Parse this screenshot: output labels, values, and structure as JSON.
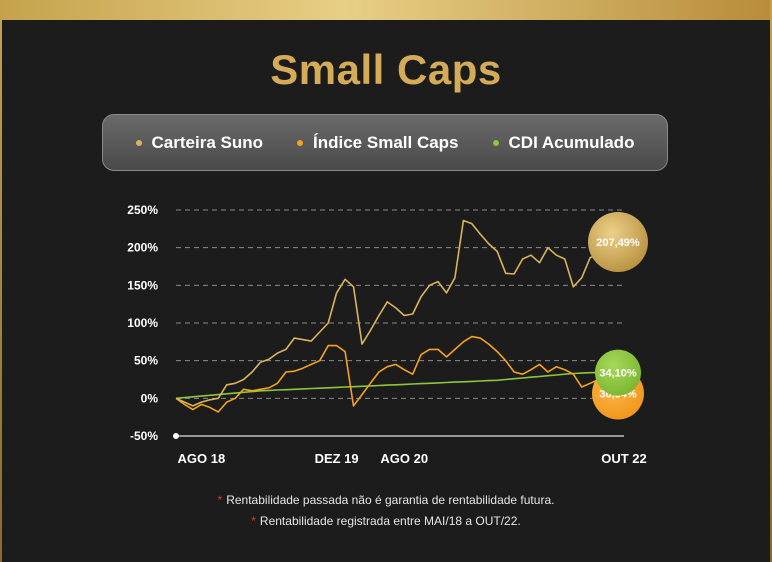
{
  "page": {
    "title": "Small Caps",
    "footnotes": [
      "Rentabilidade passada não é garantia de rentabilidade futura.",
      "Rentabilidade registrada entre MAI/18 a OUT/22."
    ],
    "footnote_marker": "*"
  },
  "colors": {
    "background": "#1c1c1c",
    "title": "#d4ac57",
    "grid": "#8a8a8a"
  },
  "chart_data": {
    "type": "line",
    "y_tick_labels": [
      "250%",
      "200%",
      "150%",
      "100%",
      "50%",
      "0%",
      "-50%"
    ],
    "y_ticks": [
      250,
      200,
      150,
      100,
      50,
      0,
      -50
    ],
    "ylim": [
      -50,
      250
    ],
    "x_tick_labels": [
      "AGO 18",
      "DEZ 19",
      "AGO 20",
      "OUT 22"
    ],
    "x_tick_positions": [
      3,
      19,
      27,
      53
    ],
    "x_count": 54,
    "grid": true,
    "legend_position": "top",
    "series": [
      {
        "name": "Carteira Suno",
        "color": "#d9b45a",
        "end_label": "207,49%",
        "values": [
          0,
          -5,
          -10,
          -5,
          -2,
          0,
          18,
          20,
          25,
          35,
          48,
          52,
          60,
          65,
          80,
          78,
          76,
          88,
          100,
          140,
          158,
          148,
          72,
          90,
          110,
          128,
          120,
          110,
          112,
          135,
          150,
          155,
          140,
          160,
          236,
          232,
          218,
          205,
          195,
          166,
          165,
          185,
          190,
          180,
          200,
          190,
          185,
          148,
          160,
          187,
          190,
          207.49,
          207.49,
          207.49
        ]
      },
      {
        "name": "Índice Small Caps",
        "color": "#f5a21e",
        "end_label": "30,34%",
        "values": [
          0,
          -8,
          -15,
          -8,
          -12,
          -18,
          -5,
          0,
          12,
          10,
          12,
          14,
          20,
          35,
          36,
          40,
          45,
          50,
          70,
          70,
          62,
          -10,
          5,
          20,
          35,
          42,
          45,
          38,
          32,
          58,
          65,
          65,
          55,
          65,
          75,
          82,
          80,
          72,
          62,
          50,
          35,
          32,
          38,
          45,
          35,
          42,
          38,
          32,
          15,
          20,
          25,
          30.34,
          30.34,
          30.34
        ]
      },
      {
        "name": "CDI Acumulado",
        "color": "#8cc63f",
        "end_label": "34,10%",
        "values": [
          0,
          1,
          2,
          3,
          4,
          5,
          6,
          7,
          8,
          9,
          10,
          10.5,
          11,
          11.5,
          12,
          12.5,
          13,
          13.5,
          14,
          14.5,
          15,
          15.5,
          16,
          16.5,
          17,
          17.5,
          18,
          18.5,
          19,
          19.5,
          20,
          20.5,
          21,
          21.5,
          22,
          22.5,
          23,
          23.5,
          24,
          25,
          26,
          27,
          28,
          29,
          30,
          31,
          32,
          33,
          33.5,
          34,
          34.1,
          34.1,
          34.1,
          34.1
        ]
      }
    ]
  }
}
